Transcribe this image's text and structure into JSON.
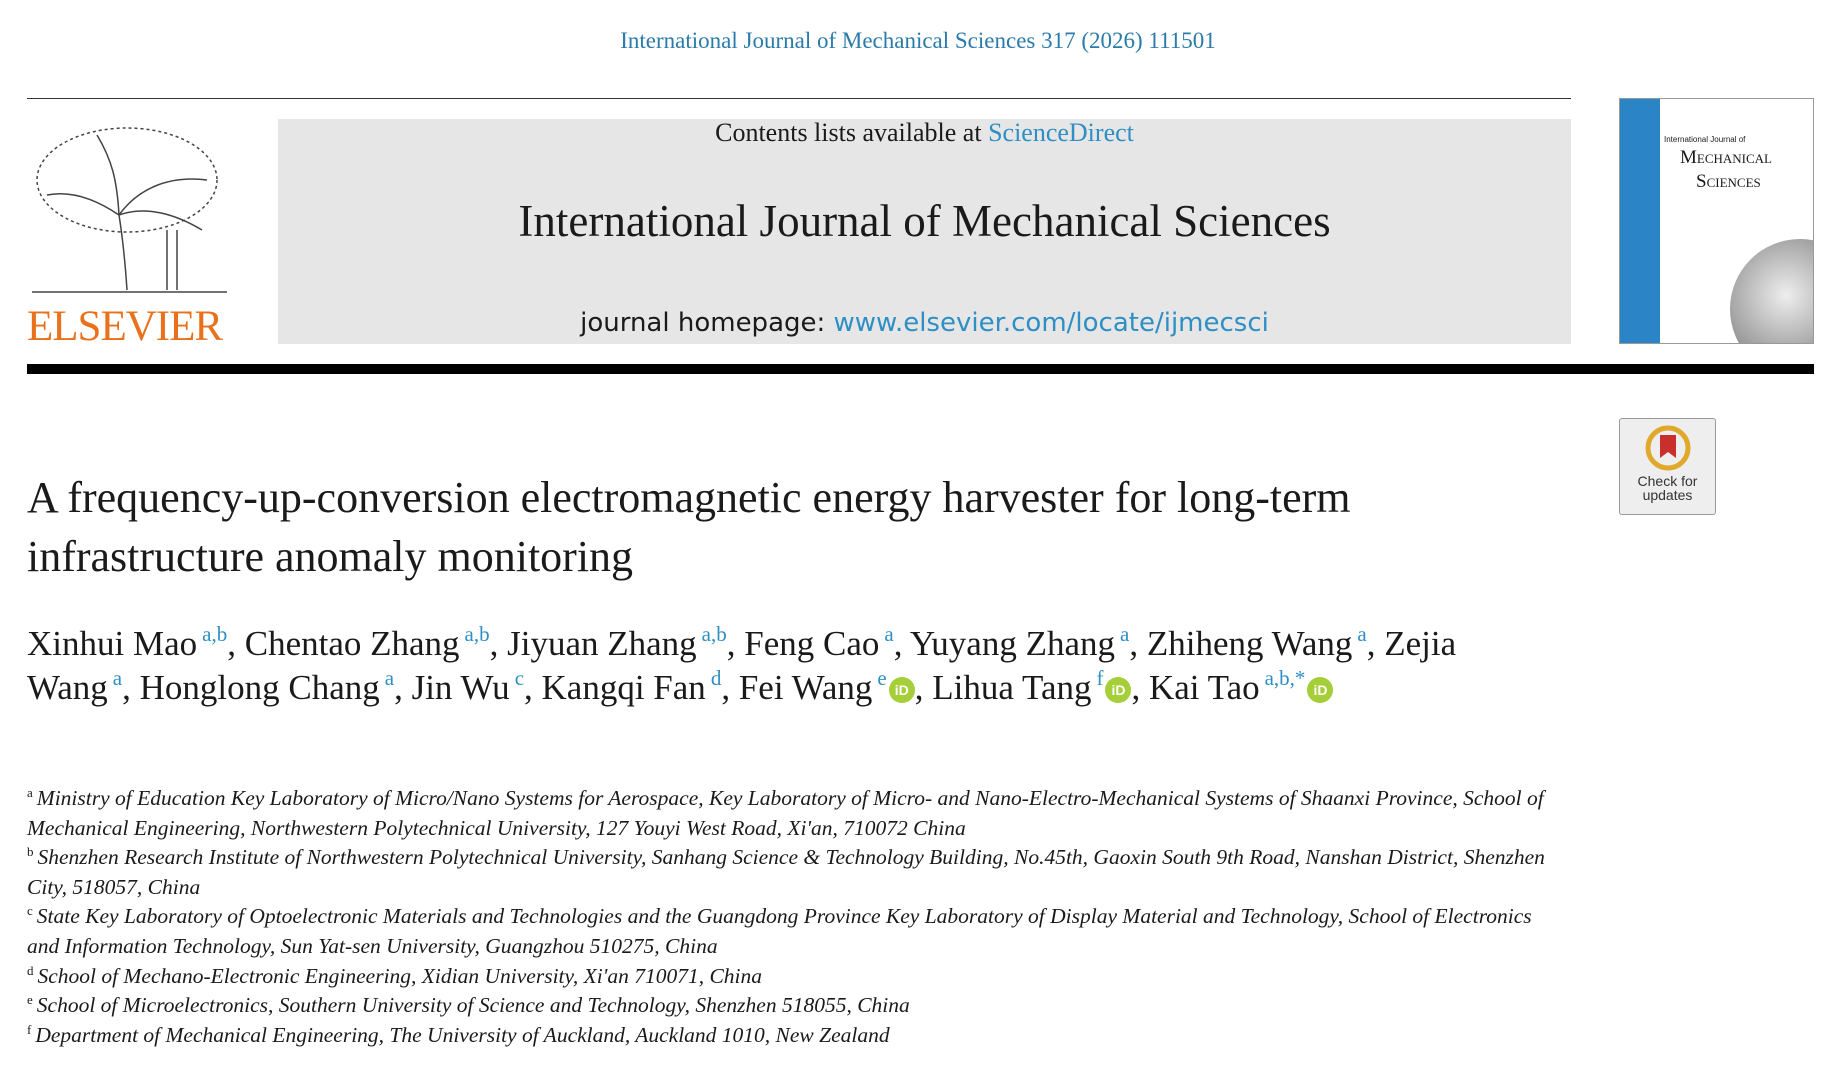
{
  "header": {
    "citation": "International Journal of Mechanical Sciences 317 (2026) 111501",
    "publisher": "ELSEVIER",
    "contents_prefix": "Contents lists available at",
    "contents_link": "ScienceDirect",
    "journal": "International Journal of Mechanical Sciences",
    "homepage_prefix": "journal homepage:",
    "homepage_link": "www.elsevier.com/locate/ijmecsci",
    "cover": {
      "line1": "International Journal of",
      "line2": "Mechanical",
      "line3": "Sciences"
    },
    "check_updates": "Check for updates"
  },
  "article": {
    "title": "A frequency-up-conversion electromagnetic energy harvester for long-term infrastructure anomaly monitoring",
    "author_separator": ",",
    "authors": [
      {
        "name": "Xinhui Mao",
        "sup": "a,b",
        "orcid": false
      },
      {
        "name": "Chentao Zhang",
        "sup": "a,b",
        "orcid": false
      },
      {
        "name": "Jiyuan Zhang",
        "sup": "a,b",
        "orcid": false
      },
      {
        "name": "Feng Cao",
        "sup": "a",
        "orcid": false
      },
      {
        "name": "Yuyang Zhang",
        "sup": "a",
        "orcid": false
      },
      {
        "name": "Zhiheng Wang",
        "sup": "a",
        "orcid": false
      },
      {
        "name": "Zejia Wang",
        "sup": "a",
        "orcid": false
      },
      {
        "name": "Honglong Chang",
        "sup": "a",
        "orcid": false
      },
      {
        "name": "Jin Wu",
        "sup": "c",
        "orcid": false
      },
      {
        "name": "Kangqi Fan",
        "sup": "d",
        "orcid": false
      },
      {
        "name": "Fei Wang",
        "sup": "e",
        "orcid": true
      },
      {
        "name": "Lihua Tang",
        "sup": "f",
        "orcid": true
      },
      {
        "name": "Kai Tao",
        "sup": "a,b,*",
        "orcid": true
      }
    ],
    "affiliations": [
      {
        "key": "a",
        "text": "Ministry of Education Key Laboratory of Micro/Nano Systems for Aerospace, Key Laboratory of Micro- and Nano-Electro-Mechanical Systems of Shaanxi Province, School of Mechanical Engineering, Northwestern Polytechnical University, 127 Youyi West Road, Xi'an, 710072 China"
      },
      {
        "key": "b",
        "text": "Shenzhen Research Institute of Northwestern Polytechnical University, Sanhang Science & Technology Building, No.45th, Gaoxin South 9th Road, Nanshan District, Shenzhen City, 518057, China"
      },
      {
        "key": "c",
        "text": "State Key Laboratory of Optoelectronic Materials and Technologies and the Guangdong Province Key Laboratory of Display Material and Technology, School of Electronics and Information Technology, Sun Yat-sen University, Guangzhou 510275, China"
      },
      {
        "key": "d",
        "text": "School of Mechano-Electronic Engineering, Xidian University, Xi'an 710071, China"
      },
      {
        "key": "e",
        "text": "School of Microelectronics, Southern University of Science and Technology, Shenzhen 518055, China"
      },
      {
        "key": "f",
        "text": "Department of Mechanical Engineering, The University of Auckland, Auckland 1010, New Zealand"
      }
    ]
  }
}
